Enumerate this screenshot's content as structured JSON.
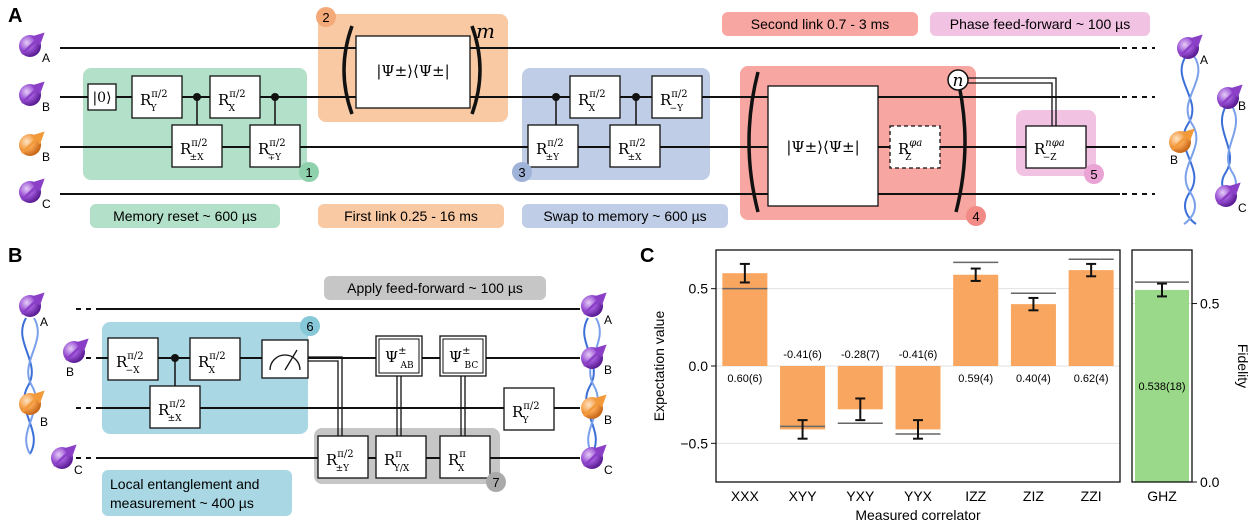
{
  "panel_a": {
    "label": "A",
    "wire_labels": [
      "A",
      "B",
      "B",
      "C"
    ],
    "regions": [
      {
        "tag": "1",
        "caption": "Memory reset ~ 600 µs",
        "color": "#b3e0c8",
        "tagcolor": "#8fd1ad"
      },
      {
        "tag": "2",
        "caption": "First link 0.25 - 16 ms",
        "color": "#f8c9a3",
        "tagcolor": "#f4aa78"
      },
      {
        "tag": "3",
        "caption": "Swap to memory ~ 600 µs",
        "color": "#c0cde6",
        "tagcolor": "#9fb2d8"
      },
      {
        "tag": "4",
        "caption": "Second link 0.7 - 3 ms",
        "color": "#f7a6a2",
        "tagcolor": "#f28a85"
      },
      {
        "tag": "5",
        "caption": "Phase feed-forward ~ 100 µs",
        "color": "#f2c2e3",
        "tagcolor": "#e9a3d4"
      }
    ],
    "gates": {
      "zero": "|0⟩",
      "ry": "R",
      "ry_sup": "π/2",
      "ry_sub": "Y",
      "rx": "R",
      "rx_sup": "π/2",
      "rx_sub": "X",
      "rpmx": "R",
      "rpmx_sup": "π/2",
      "rpmx_sub": "±X",
      "rmpy": "R",
      "rmpy_sup": "π/2",
      "rmpy_sub": "∓Y",
      "bell": "|Ψ±⟩⟨Ψ±|",
      "rpmy": "R",
      "rpmy_sup": "π/2",
      "rpmy_sub": "±Y",
      "rmy": "R",
      "rmy_sup": "π/2",
      "rmy_sub": "−Y",
      "rz": "R",
      "rz_sup": "φa",
      "rz_sub": "Z",
      "rnz": "R",
      "rnz_sup": "nφa",
      "rnz_sub": "−Z"
    },
    "exp_m": "m",
    "exp_n": "n"
  },
  "panel_b": {
    "label": "B",
    "wire_labels": [
      "A",
      "B",
      "B",
      "C"
    ],
    "regions": [
      {
        "tag": "6",
        "caption_line1": "Local entanglement and",
        "caption_line2": "measurement ~ 400 µs",
        "color": "#a9d8e4",
        "tagcolor": "#86c7d8"
      },
      {
        "tag": "7",
        "caption": "Apply feed-forward ~ 100 µs",
        "color": "#c6c6c6",
        "tagcolor": "#a9a9a9"
      }
    ],
    "gates": {
      "rmx": "R",
      "rmx_sup": "π/2",
      "rmx_sub": "−X",
      "rpmx": "R",
      "rpmx_sup": "π/2",
      "rpmx_sub": "±X",
      "rx": "R",
      "rx_sup": "π/2",
      "rx_sub": "X",
      "psi_ab": "Ψ",
      "psi_ab_sup": "±",
      "psi_ab_sub": "AB",
      "psi_bc": "Ψ",
      "psi_bc_sup": "±",
      "psi_bc_sub": "BC",
      "ry": "R",
      "ry_sup": "π/2",
      "ry_sub": "Y",
      "rpmy": "R",
      "rpmy_sup": "π/2",
      "rpmy_sub": "±Y",
      "ryx": "R",
      "ryx_sup": "π",
      "ryx_sub": "Y/X",
      "rxpi": "R",
      "rxpi_sup": "π",
      "rxpi_sub": "X"
    }
  },
  "colors": {
    "purple": "#8a3fc6",
    "orange": "#f29a3a",
    "helix": "#3b6fd8",
    "bar_orange": "#f9a660",
    "bar_green": "#9bd98a"
  },
  "chart_data": [
    {
      "type": "bar",
      "panel_label": "C",
      "categories": [
        "XXX",
        "XYY",
        "YXY",
        "YYX",
        "IZZ",
        "ZIZ",
        "ZZI"
      ],
      "values": [
        0.6,
        -0.41,
        -0.28,
        -0.41,
        0.59,
        0.4,
        0.62
      ],
      "errors": [
        0.06,
        0.06,
        0.07,
        0.06,
        0.04,
        0.04,
        0.04
      ],
      "data_labels": [
        "0.60(6)",
        "-0.41(6)",
        "-0.28(7)",
        "-0.41(6)",
        "0.59(4)",
        "0.40(4)",
        "0.62(4)"
      ],
      "reference": [
        0.5,
        -0.39,
        -0.37,
        -0.44,
        0.67,
        0.47,
        0.69
      ],
      "xlabel": "Measured correlator",
      "ylabel": "Expectation value",
      "ylim": [
        -0.75,
        0.75
      ],
      "yticks": [
        -0.5,
        0.0,
        0.5
      ],
      "ytick_labels": [
        "−0.5",
        "0.0",
        "0.5"
      ],
      "grid": true
    },
    {
      "type": "bar",
      "categories": [
        "GHZ"
      ],
      "values": [
        0.538
      ],
      "errors": [
        0.018
      ],
      "data_labels": [
        "0.538(18)"
      ],
      "reference": [
        0.56
      ],
      "ylabel": "Fidelity",
      "ylim": [
        0.0,
        0.65
      ],
      "yticks": [
        0.0,
        0.5
      ],
      "ytick_labels": [
        "0.0",
        "0.5"
      ],
      "grid": true
    }
  ]
}
